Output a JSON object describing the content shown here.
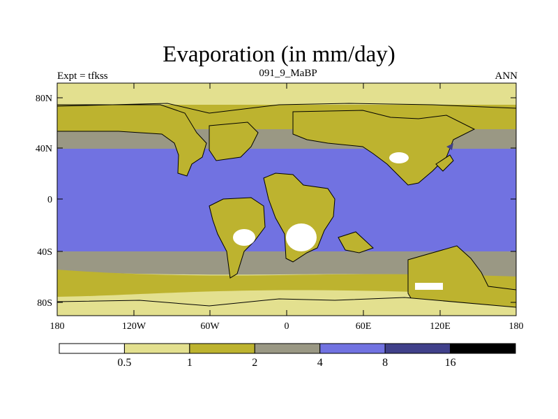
{
  "title": "Evaporation (in mm/day)",
  "subtitle_left": "Expt = tfkss",
  "subtitle_center": "091_9_MaBP",
  "subtitle_right": "ANN",
  "lat_labels": [
    "80N",
    "40N",
    "0",
    "40S",
    "80S"
  ],
  "lon_labels": [
    "180",
    "120W",
    "60W",
    "0",
    "60E",
    "120E",
    "180"
  ],
  "legend": {
    "labels": [
      "0.5",
      "1",
      "2",
      "4",
      "8",
      "16"
    ],
    "colors": [
      "#ffffff",
      "#e3e08f",
      "#bdb32f",
      "#9a9884",
      "#7172e1",
      "#40408a",
      "#000000"
    ]
  },
  "colors": {
    "land_dry": "#e3e08f",
    "land_mid": "#bdb32f",
    "gray_band": "#9a9884",
    "ocean": "#7172e1",
    "desert": "#ffffff",
    "deep": "#40408a"
  }
}
